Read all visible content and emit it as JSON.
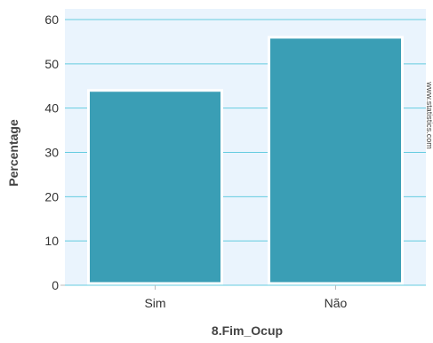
{
  "chart_data": {
    "type": "bar",
    "categories": [
      "Sim",
      "Não"
    ],
    "values": [
      44,
      56
    ],
    "xlabel": "8.Fim_Ocup",
    "ylabel": "Percentage",
    "ylim": [
      0,
      60
    ],
    "yticks": [
      0,
      10,
      20,
      30,
      40,
      50,
      60
    ],
    "grid": true,
    "legend": "none",
    "watermark": "www.statistics.com"
  },
  "colors": {
    "bar": "#3a9eb5",
    "bar_edge": "#ffffff",
    "plot_bg": "#eaf4fd",
    "grid": "#66cce0",
    "text": "#333333",
    "axis_title": "#444444"
  }
}
